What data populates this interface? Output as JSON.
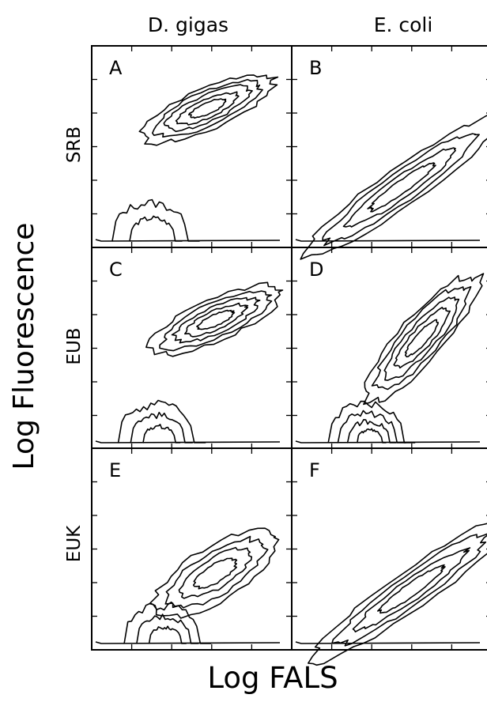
{
  "chart_data": {
    "type": "contour",
    "xlabel": "Log FALS",
    "ylabel": "Log Fluorescence",
    "columns": [
      "D. gigas",
      "E. coli"
    ],
    "rows": [
      "SRB",
      "EUB",
      "EUK"
    ],
    "panels": [
      {
        "label": "A",
        "column": "D. gigas",
        "row": "SRB",
        "populations": [
          {
            "center": [
              0.58,
              0.69
            ],
            "levels": 5,
            "shape": "elongated diagonal ellipse"
          },
          {
            "center": [
              0.32,
              0.15
            ],
            "levels": 2,
            "shape": "low-FALS low-fluorescence cluster"
          }
        ]
      },
      {
        "label": "B",
        "column": "E. coli",
        "row": "SRB",
        "populations": [
          {
            "center": [
              0.55,
              0.3
            ],
            "levels": 4,
            "shape": "broad diagonal streak from low to high"
          }
        ]
      },
      {
        "label": "C",
        "column": "D. gigas",
        "row": "EUB",
        "populations": [
          {
            "center": [
              0.62,
              0.64
            ],
            "levels": 5,
            "shape": "elongated diagonal ellipse"
          },
          {
            "center": [
              0.35,
              0.16
            ],
            "levels": 3,
            "shape": "low-FALS low-fluorescence cluster"
          }
        ]
      },
      {
        "label": "D",
        "column": "E. coli",
        "row": "EUB",
        "populations": [
          {
            "center": [
              0.65,
              0.55
            ],
            "levels": 5,
            "shape": "steep diagonal ellipse"
          },
          {
            "center": [
              0.4,
              0.14
            ],
            "levels": 4,
            "shape": "low-fluorescence dome"
          }
        ]
      },
      {
        "label": "E",
        "column": "D. gigas",
        "row": "EUK",
        "populations": [
          {
            "center": [
              0.62,
              0.38
            ],
            "levels": 4,
            "shape": "diagonal ellipse"
          },
          {
            "center": [
              0.38,
              0.12
            ],
            "levels": 3,
            "shape": "low-fluorescence dome"
          }
        ]
      },
      {
        "label": "F",
        "column": "E. coli",
        "row": "EUK",
        "populations": [
          {
            "center": [
              0.6,
              0.3
            ],
            "levels": 4,
            "shape": "broad diagonal streak"
          }
        ]
      }
    ],
    "grid": false
  }
}
